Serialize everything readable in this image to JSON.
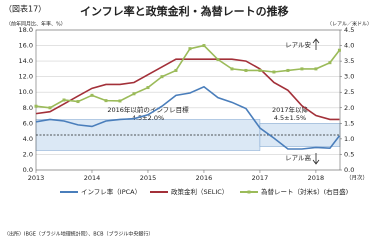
{
  "chart_data": {
    "type": "line",
    "figure_label": "（図表17）",
    "title": "インフレ率と政策金利・為替レートの推移",
    "y_axis_label": "（前年同月比、年率、%）",
    "y2_axis_label": "（レアル／米ドル）",
    "x_axis_label": "（月次）",
    "source": "（出所）IBGE（ブラジル地理統計院）、BCB（ブラジル中央銀行）",
    "annotations": {
      "real_weak": "レアル安",
      "real_strong": "レアル高",
      "band1_line1": "2016年以前のインフレ目標",
      "band1_line2": "4.5±2.0%",
      "band2_line1": "2017年以降",
      "band2_line2": "4.5±1.5%"
    },
    "target_line": 4.5,
    "target_bands": [
      {
        "x": [
          2013,
          2017
        ],
        "low": 2.5,
        "high": 6.5
      },
      {
        "x": [
          2017,
          2018.43
        ],
        "low": 3.0,
        "high": 6.0
      }
    ],
    "x": [
      2013,
      2013.25,
      2013.5,
      2013.75,
      2014,
      2014.25,
      2014.5,
      2014.75,
      2015,
      2015.25,
      2015.5,
      2015.75,
      2016,
      2016.25,
      2016.5,
      2016.75,
      2017,
      2017.25,
      2017.5,
      2017.75,
      2018,
      2018.25,
      2018.42
    ],
    "series": [
      {
        "name": "インフレ率（IPCA）",
        "color": "#4a7ebb",
        "values": [
          6.2,
          6.5,
          6.3,
          5.8,
          5.6,
          6.3,
          6.5,
          6.6,
          7.1,
          8.2,
          9.6,
          9.9,
          10.7,
          9.3,
          8.7,
          7.9,
          5.4,
          4.1,
          2.7,
          2.7,
          2.9,
          2.8,
          4.4
        ]
      },
      {
        "name": "政策金利（SELIC）",
        "color": "#a33039",
        "values": [
          7.25,
          7.5,
          8.5,
          9.5,
          10.5,
          11.0,
          11.0,
          11.25,
          12.25,
          13.25,
          14.25,
          14.25,
          14.25,
          14.25,
          14.25,
          14.0,
          13.0,
          11.25,
          10.25,
          8.25,
          7.0,
          6.5,
          6.5
        ]
      },
      {
        "name": "為替レート（対米$）(右目盛)",
        "color": "#9bbb59",
        "axis": "y2",
        "values": [
          2.05,
          2.0,
          2.25,
          2.2,
          2.4,
          2.23,
          2.22,
          2.45,
          2.65,
          3.0,
          3.2,
          3.9,
          4.0,
          3.55,
          3.25,
          3.2,
          3.2,
          3.15,
          3.2,
          3.25,
          3.25,
          3.45,
          3.85
        ]
      }
    ],
    "xlim": [
      2013,
      2018.43
    ],
    "xticks": [
      2013,
      2014,
      2015,
      2016,
      2017,
      2018
    ],
    "ylim": [
      0,
      18
    ],
    "yticks": [
      {
        "value": 0,
        "label": "0.0"
      },
      {
        "value": 2,
        "label": "2.0"
      },
      {
        "value": 4,
        "label": "4.0"
      },
      {
        "value": 6,
        "label": "6.0"
      },
      {
        "value": 8,
        "label": "8.0"
      },
      {
        "value": 10,
        "label": "10.0"
      },
      {
        "value": 12,
        "label": "12.0"
      },
      {
        "value": 14,
        "label": "14.0"
      },
      {
        "value": 16,
        "label": "16.0"
      },
      {
        "value": 18,
        "label": "18.0"
      }
    ],
    "y2lim": [
      0,
      4.5
    ],
    "y2ticks": [
      {
        "value": 0,
        "label": "0.0"
      },
      {
        "value": 0.5,
        "label": "0.5"
      },
      {
        "value": 1,
        "label": "1.0"
      },
      {
        "value": 1.5,
        "label": "1.5"
      },
      {
        "value": 2,
        "label": "2.0"
      },
      {
        "value": 2.5,
        "label": "2.5"
      },
      {
        "value": 3,
        "label": "3.0"
      },
      {
        "value": 3.5,
        "label": "3.5"
      },
      {
        "value": 4,
        "label": "4.0"
      },
      {
        "value": 4.5,
        "label": "4.5"
      }
    ],
    "grid": true
  }
}
